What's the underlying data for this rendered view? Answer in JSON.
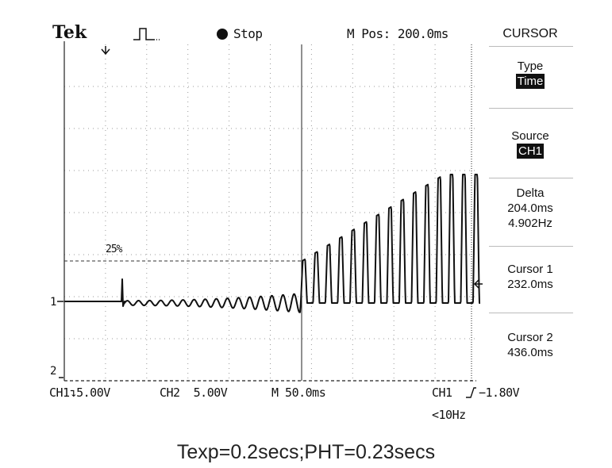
{
  "header": {
    "brand": "Tek",
    "acquire_icon": "pulse-icon",
    "run_state_icon": "filled-circle-icon",
    "run_state": "Stop",
    "m_pos": "M Pos: 200.0ms"
  },
  "menu": {
    "title": "CURSOR",
    "type_label": "Type",
    "type_value": "Time",
    "source_label": "Source",
    "source_value": "CH1",
    "delta_label": "Delta",
    "delta_time": "204.0ms",
    "delta_freq": "4.902Hz",
    "cursor1_label": "Cursor 1",
    "cursor1_value": "232.0ms",
    "cursor2_label": "Cursor 2",
    "cursor2_value": "436.0ms"
  },
  "screen": {
    "level_label": "25%",
    "ch1_marker": "1",
    "ch2_marker": "2"
  },
  "footer": {
    "ch1_scale": "CH1",
    "ch1_scale_value": "5.00V",
    "ch2_scale": "CH2  5.00V",
    "timebase": "M 50.0ms",
    "trigger_source": "CH1",
    "trigger_icon": "rising-edge-icon",
    "trigger_level": "−1.80V",
    "trigger_freq": "<10Hz"
  },
  "caption": "Texp=0.2secs;PHT=0.23secs",
  "colors": {
    "trace": "#111111",
    "grid": "#9a9a9a",
    "highlight_bg": "#111111"
  }
}
